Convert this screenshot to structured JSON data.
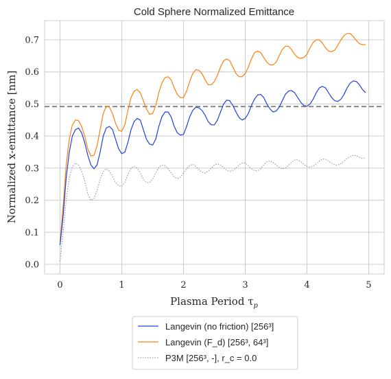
{
  "chart_data": {
    "type": "line",
    "title": "Cold Sphere Normalized Emittance",
    "xlabel": "Plasma Period τ",
    "xlabel_sub": "p",
    "ylabel": "Normalized x-emittance [nm]",
    "xlim": [
      -0.25,
      5.25
    ],
    "ylim": [
      -0.03,
      0.76
    ],
    "xticks": [
      0,
      1,
      2,
      3,
      4,
      5
    ],
    "yticks": [
      0.0,
      0.1,
      0.2,
      0.3,
      0.4,
      0.5,
      0.6,
      0.7
    ],
    "xtick_labels": [
      "0",
      "1",
      "2",
      "3",
      "4",
      "5"
    ],
    "ytick_labels": [
      "0.0",
      "0.1",
      "0.2",
      "0.3",
      "0.4",
      "0.5",
      "0.6",
      "0.7"
    ],
    "grid": true,
    "legend_placement": "bottom-center below axes",
    "reference_line": {
      "y": 0.492,
      "style": "dashed",
      "color": "#808080"
    },
    "series": [
      {
        "name": "Langevin (no friction) [256³]",
        "color": "#1f3fe0",
        "style": "solid",
        "points": [
          [
            0.0,
            0.06
          ],
          [
            0.05,
            0.15
          ],
          [
            0.1,
            0.27
          ],
          [
            0.15,
            0.35
          ],
          [
            0.2,
            0.4
          ],
          [
            0.25,
            0.42
          ],
          [
            0.3,
            0.425
          ],
          [
            0.35,
            0.41
          ],
          [
            0.4,
            0.38
          ],
          [
            0.45,
            0.34
          ],
          [
            0.5,
            0.31
          ],
          [
            0.55,
            0.298
          ],
          [
            0.6,
            0.31
          ],
          [
            0.65,
            0.35
          ],
          [
            0.7,
            0.4
          ],
          [
            0.75,
            0.425
          ],
          [
            0.8,
            0.43
          ],
          [
            0.85,
            0.42
          ],
          [
            0.9,
            0.39
          ],
          [
            0.95,
            0.36
          ],
          [
            1.0,
            0.345
          ],
          [
            1.05,
            0.35
          ],
          [
            1.1,
            0.38
          ],
          [
            1.15,
            0.42
          ],
          [
            1.2,
            0.445
          ],
          [
            1.25,
            0.455
          ],
          [
            1.3,
            0.45
          ],
          [
            1.35,
            0.42
          ],
          [
            1.4,
            0.39
          ],
          [
            1.45,
            0.375
          ],
          [
            1.5,
            0.372
          ],
          [
            1.55,
            0.39
          ],
          [
            1.6,
            0.43
          ],
          [
            1.65,
            0.46
          ],
          [
            1.7,
            0.475
          ],
          [
            1.75,
            0.475
          ],
          [
            1.8,
            0.46
          ],
          [
            1.85,
            0.43
          ],
          [
            1.9,
            0.41
          ],
          [
            1.95,
            0.403
          ],
          [
            2.0,
            0.405
          ],
          [
            2.05,
            0.43
          ],
          [
            2.1,
            0.46
          ],
          [
            2.15,
            0.48
          ],
          [
            2.2,
            0.49
          ],
          [
            2.25,
            0.488
          ],
          [
            2.3,
            0.48
          ],
          [
            2.35,
            0.465
          ],
          [
            2.4,
            0.445
          ],
          [
            2.45,
            0.435
          ],
          [
            2.5,
            0.435
          ],
          [
            2.55,
            0.45
          ],
          [
            2.6,
            0.475
          ],
          [
            2.65,
            0.5
          ],
          [
            2.7,
            0.512
          ],
          [
            2.75,
            0.51
          ],
          [
            2.8,
            0.495
          ],
          [
            2.85,
            0.475
          ],
          [
            2.9,
            0.458
          ],
          [
            2.95,
            0.45
          ],
          [
            3.0,
            0.455
          ],
          [
            3.05,
            0.47
          ],
          [
            3.1,
            0.495
          ],
          [
            3.15,
            0.515
          ],
          [
            3.2,
            0.528
          ],
          [
            3.25,
            0.53
          ],
          [
            3.3,
            0.52
          ],
          [
            3.35,
            0.5
          ],
          [
            3.4,
            0.485
          ],
          [
            3.45,
            0.475
          ],
          [
            3.5,
            0.478
          ],
          [
            3.55,
            0.49
          ],
          [
            3.6,
            0.51
          ],
          [
            3.65,
            0.53
          ],
          [
            3.7,
            0.54
          ],
          [
            3.75,
            0.542
          ],
          [
            3.8,
            0.535
          ],
          [
            3.85,
            0.52
          ],
          [
            3.9,
            0.505
          ],
          [
            3.95,
            0.495
          ],
          [
            4.0,
            0.493
          ],
          [
            4.05,
            0.5
          ],
          [
            4.1,
            0.515
          ],
          [
            4.15,
            0.535
          ],
          [
            4.2,
            0.55
          ],
          [
            4.25,
            0.555
          ],
          [
            4.3,
            0.55
          ],
          [
            4.35,
            0.535
          ],
          [
            4.4,
            0.52
          ],
          [
            4.45,
            0.51
          ],
          [
            4.5,
            0.508
          ],
          [
            4.55,
            0.515
          ],
          [
            4.6,
            0.53
          ],
          [
            4.65,
            0.55
          ],
          [
            4.7,
            0.565
          ],
          [
            4.75,
            0.572
          ],
          [
            4.8,
            0.57
          ],
          [
            4.85,
            0.56
          ],
          [
            4.9,
            0.545
          ],
          [
            4.95,
            0.535
          ]
        ]
      },
      {
        "name": "Langevin (F_d) [256³, 64³]",
        "color": "#ff7f0e",
        "style": "solid",
        "points": [
          [
            0.0,
            0.07
          ],
          [
            0.05,
            0.18
          ],
          [
            0.1,
            0.31
          ],
          [
            0.15,
            0.39
          ],
          [
            0.2,
            0.435
          ],
          [
            0.25,
            0.45
          ],
          [
            0.3,
            0.448
          ],
          [
            0.35,
            0.43
          ],
          [
            0.4,
            0.4
          ],
          [
            0.45,
            0.36
          ],
          [
            0.5,
            0.338
          ],
          [
            0.55,
            0.34
          ],
          [
            0.6,
            0.37
          ],
          [
            0.65,
            0.42
          ],
          [
            0.7,
            0.47
          ],
          [
            0.75,
            0.493
          ],
          [
            0.8,
            0.49
          ],
          [
            0.85,
            0.47
          ],
          [
            0.9,
            0.44
          ],
          [
            0.95,
            0.418
          ],
          [
            1.0,
            0.415
          ],
          [
            1.05,
            0.435
          ],
          [
            1.1,
            0.48
          ],
          [
            1.15,
            0.52
          ],
          [
            1.2,
            0.54
          ],
          [
            1.25,
            0.545
          ],
          [
            1.3,
            0.535
          ],
          [
            1.35,
            0.51
          ],
          [
            1.4,
            0.485
          ],
          [
            1.45,
            0.468
          ],
          [
            1.5,
            0.47
          ],
          [
            1.55,
            0.495
          ],
          [
            1.6,
            0.535
          ],
          [
            1.65,
            0.565
          ],
          [
            1.7,
            0.582
          ],
          [
            1.75,
            0.585
          ],
          [
            1.8,
            0.575
          ],
          [
            1.85,
            0.55
          ],
          [
            1.9,
            0.53
          ],
          [
            1.95,
            0.52
          ],
          [
            2.0,
            0.52
          ],
          [
            2.05,
            0.54
          ],
          [
            2.1,
            0.57
          ],
          [
            2.15,
            0.595
          ],
          [
            2.2,
            0.607
          ],
          [
            2.25,
            0.605
          ],
          [
            2.3,
            0.595
          ],
          [
            2.35,
            0.575
          ],
          [
            2.4,
            0.56
          ],
          [
            2.45,
            0.56
          ],
          [
            2.5,
            0.57
          ],
          [
            2.55,
            0.59
          ],
          [
            2.6,
            0.615
          ],
          [
            2.65,
            0.635
          ],
          [
            2.7,
            0.64
          ],
          [
            2.75,
            0.635
          ],
          [
            2.8,
            0.615
          ],
          [
            2.85,
            0.595
          ],
          [
            2.9,
            0.585
          ],
          [
            2.95,
            0.585
          ],
          [
            3.0,
            0.595
          ],
          [
            3.05,
            0.615
          ],
          [
            3.1,
            0.64
          ],
          [
            3.15,
            0.66
          ],
          [
            3.2,
            0.665
          ],
          [
            3.25,
            0.66
          ],
          [
            3.3,
            0.645
          ],
          [
            3.35,
            0.63
          ],
          [
            3.4,
            0.622
          ],
          [
            3.45,
            0.622
          ],
          [
            3.5,
            0.63
          ],
          [
            3.55,
            0.65
          ],
          [
            3.6,
            0.67
          ],
          [
            3.65,
            0.68
          ],
          [
            3.7,
            0.68
          ],
          [
            3.75,
            0.67
          ],
          [
            3.8,
            0.655
          ],
          [
            3.85,
            0.645
          ],
          [
            3.9,
            0.642
          ],
          [
            3.95,
            0.645
          ],
          [
            4.0,
            0.655
          ],
          [
            4.05,
            0.675
          ],
          [
            4.1,
            0.692
          ],
          [
            4.15,
            0.7
          ],
          [
            4.2,
            0.7
          ],
          [
            4.25,
            0.69
          ],
          [
            4.3,
            0.675
          ],
          [
            4.35,
            0.665
          ],
          [
            4.4,
            0.663
          ],
          [
            4.45,
            0.668
          ],
          [
            4.5,
            0.683
          ],
          [
            4.55,
            0.7
          ],
          [
            4.6,
            0.713
          ],
          [
            4.65,
            0.72
          ],
          [
            4.7,
            0.72
          ],
          [
            4.75,
            0.71
          ],
          [
            4.8,
            0.698
          ],
          [
            4.85,
            0.688
          ],
          [
            4.9,
            0.685
          ],
          [
            4.95,
            0.685
          ]
        ]
      },
      {
        "name": "P3M [256³, -], r_c = 0.0",
        "color": "#888888",
        "style": "dotted",
        "points": [
          [
            0.0,
            0.01
          ],
          [
            0.05,
            0.1
          ],
          [
            0.1,
            0.2
          ],
          [
            0.15,
            0.27
          ],
          [
            0.2,
            0.305
          ],
          [
            0.25,
            0.315
          ],
          [
            0.3,
            0.31
          ],
          [
            0.35,
            0.29
          ],
          [
            0.4,
            0.26
          ],
          [
            0.45,
            0.22
          ],
          [
            0.5,
            0.2
          ],
          [
            0.55,
            0.205
          ],
          [
            0.6,
            0.23
          ],
          [
            0.65,
            0.265
          ],
          [
            0.7,
            0.29
          ],
          [
            0.75,
            0.298
          ],
          [
            0.8,
            0.29
          ],
          [
            0.85,
            0.275
          ],
          [
            0.9,
            0.255
          ],
          [
            0.95,
            0.245
          ],
          [
            1.0,
            0.243
          ],
          [
            1.05,
            0.255
          ],
          [
            1.1,
            0.28
          ],
          [
            1.15,
            0.3
          ],
          [
            1.2,
            0.305
          ],
          [
            1.25,
            0.3
          ],
          [
            1.3,
            0.285
          ],
          [
            1.35,
            0.265
          ],
          [
            1.4,
            0.255
          ],
          [
            1.45,
            0.255
          ],
          [
            1.5,
            0.265
          ],
          [
            1.55,
            0.285
          ],
          [
            1.6,
            0.302
          ],
          [
            1.65,
            0.31
          ],
          [
            1.7,
            0.308
          ],
          [
            1.75,
            0.298
          ],
          [
            1.8,
            0.285
          ],
          [
            1.85,
            0.272
          ],
          [
            1.9,
            0.268
          ],
          [
            1.95,
            0.272
          ],
          [
            2.0,
            0.285
          ],
          [
            2.05,
            0.298
          ],
          [
            2.1,
            0.308
          ],
          [
            2.15,
            0.312
          ],
          [
            2.2,
            0.305
          ],
          [
            2.25,
            0.295
          ],
          [
            2.3,
            0.287
          ],
          [
            2.35,
            0.285
          ],
          [
            2.4,
            0.29
          ],
          [
            2.45,
            0.3
          ],
          [
            2.5,
            0.31
          ],
          [
            2.55,
            0.313
          ],
          [
            2.6,
            0.31
          ],
          [
            2.65,
            0.302
          ],
          [
            2.7,
            0.293
          ],
          [
            2.75,
            0.29
          ],
          [
            2.8,
            0.293
          ],
          [
            2.85,
            0.3
          ],
          [
            2.9,
            0.31
          ],
          [
            2.95,
            0.316
          ],
          [
            3.0,
            0.316
          ],
          [
            3.05,
            0.308
          ],
          [
            3.1,
            0.298
          ],
          [
            3.15,
            0.292
          ],
          [
            3.2,
            0.292
          ],
          [
            3.25,
            0.298
          ],
          [
            3.3,
            0.31
          ],
          [
            3.35,
            0.32
          ],
          [
            3.4,
            0.322
          ],
          [
            3.45,
            0.318
          ],
          [
            3.5,
            0.31
          ],
          [
            3.55,
            0.302
          ],
          [
            3.6,
            0.298
          ],
          [
            3.65,
            0.3
          ],
          [
            3.7,
            0.308
          ],
          [
            3.75,
            0.318
          ],
          [
            3.8,
            0.325
          ],
          [
            3.85,
            0.326
          ],
          [
            3.9,
            0.32
          ],
          [
            3.95,
            0.312
          ],
          [
            4.0,
            0.305
          ],
          [
            4.05,
            0.303
          ],
          [
            4.1,
            0.306
          ],
          [
            4.15,
            0.313
          ],
          [
            4.2,
            0.322
          ],
          [
            4.25,
            0.328
          ],
          [
            4.3,
            0.328
          ],
          [
            4.35,
            0.322
          ],
          [
            4.4,
            0.315
          ],
          [
            4.45,
            0.31
          ],
          [
            4.5,
            0.31
          ],
          [
            4.55,
            0.314
          ],
          [
            4.6,
            0.322
          ],
          [
            4.65,
            0.33
          ],
          [
            4.7,
            0.336
          ],
          [
            4.75,
            0.34
          ],
          [
            4.8,
            0.338
          ],
          [
            4.85,
            0.334
          ],
          [
            4.9,
            0.33
          ],
          [
            4.95,
            0.333
          ]
        ]
      }
    ]
  }
}
